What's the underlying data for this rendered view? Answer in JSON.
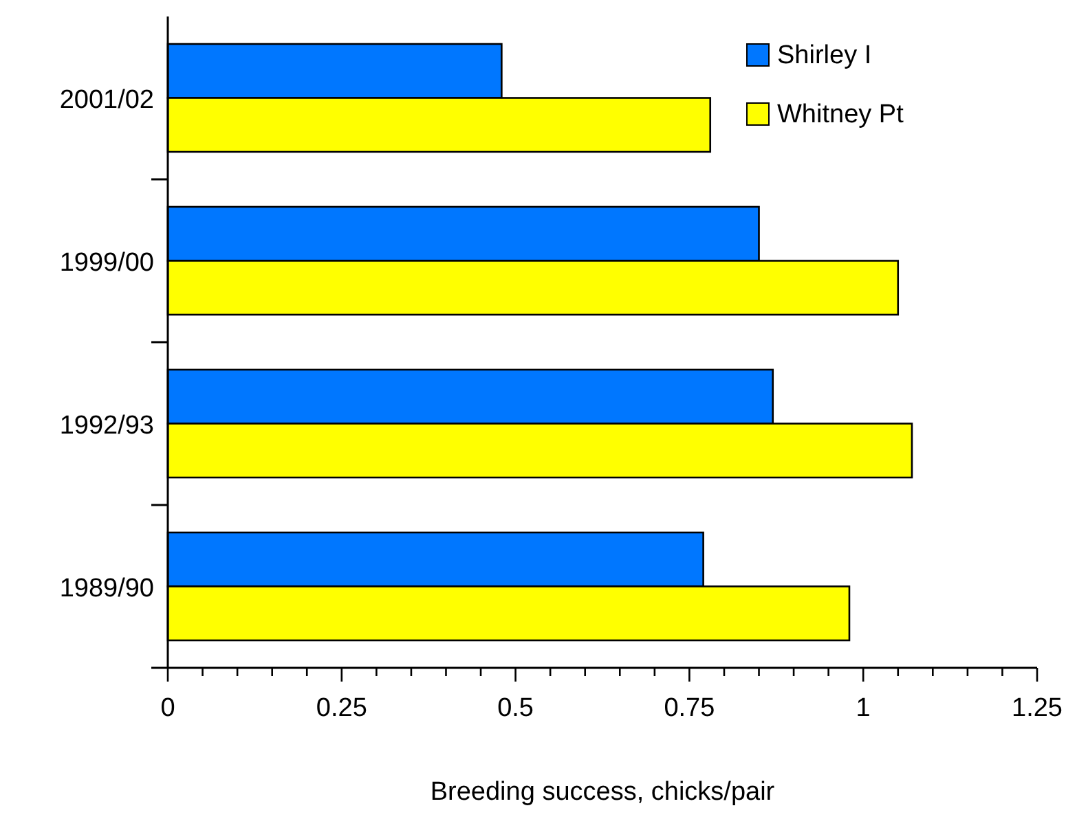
{
  "chart_data": {
    "type": "bar",
    "orientation": "horizontal",
    "xlabel": "Breeding success, chicks/pair",
    "categories": [
      "2001/02",
      "1999/00",
      "1992/93",
      "1989/90"
    ],
    "series": [
      {
        "name": "Shirley I",
        "color": "#0077ff",
        "values": [
          0.48,
          0.85,
          0.87,
          0.77
        ]
      },
      {
        "name": "Whitney Pt",
        "color": "#ffff00",
        "values": [
          0.78,
          1.05,
          1.07,
          0.98
        ]
      }
    ],
    "xlim": [
      0,
      1.25
    ],
    "xticks": [
      0,
      {
        "value": 0.05,
        "label": null
      },
      {
        "value": 0.1,
        "label": null
      },
      {
        "value": 0.15,
        "label": null
      },
      {
        "value": 0.2,
        "label": null
      },
      0.25,
      {
        "value": 0.3,
        "label": null
      },
      {
        "value": 0.35,
        "label": null
      },
      {
        "value": 0.4,
        "label": null
      },
      {
        "value": 0.45,
        "label": null
      },
      0.5,
      {
        "value": 0.55,
        "label": null
      },
      {
        "value": 0.6,
        "label": null
      },
      {
        "value": 0.65,
        "label": null
      },
      {
        "value": 0.7,
        "label": null
      },
      0.75,
      {
        "value": 0.8,
        "label": null
      },
      {
        "value": 0.85,
        "label": null
      },
      {
        "value": 0.9,
        "label": null
      },
      {
        "value": 0.95,
        "label": null
      },
      1,
      {
        "value": 1.05,
        "label": null
      },
      {
        "value": 1.1,
        "label": null
      },
      {
        "value": 1.15,
        "label": null
      },
      {
        "value": 1.2,
        "label": null
      },
      1.25
    ],
    "legend": "top right",
    "grid": false
  }
}
